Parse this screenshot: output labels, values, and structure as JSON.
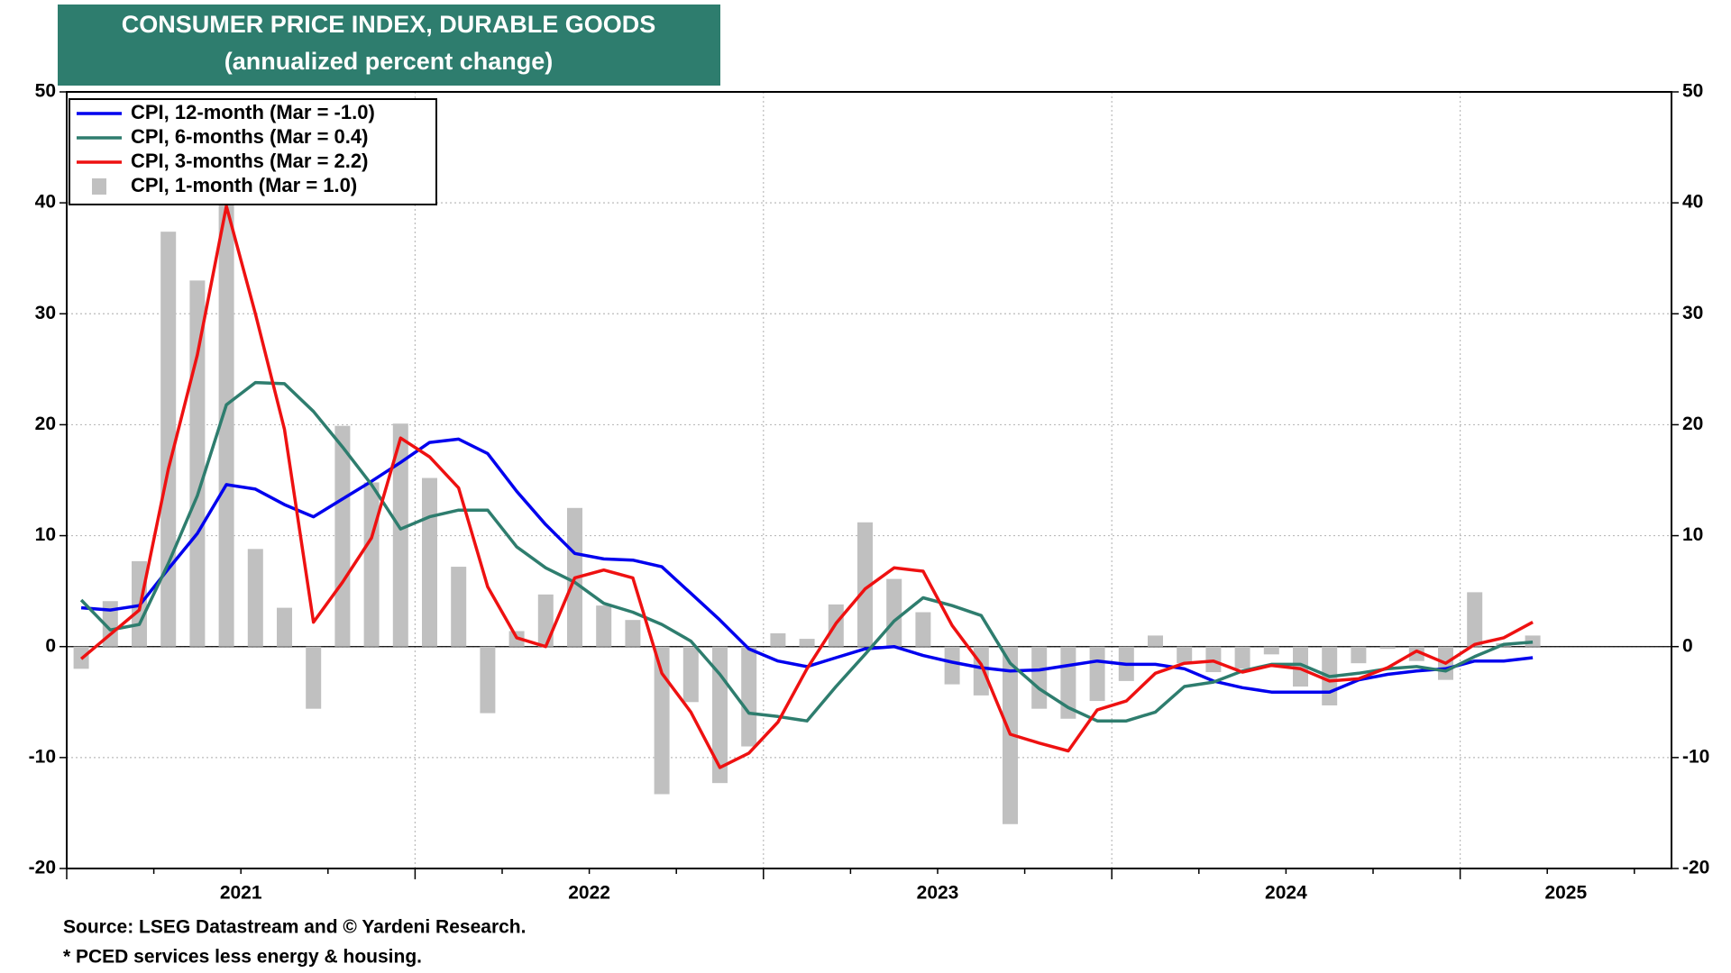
{
  "chart_data": {
    "type": "line",
    "title": "CONSUMER PRICE INDEX, DURABLE GOODS",
    "subtitle": "(annualized percent change)",
    "source": "Source: LSEG Datastream and © Yardeni Research.",
    "note": "* PCED services less energy & housing.",
    "categories": [
      null,
      null,
      null,
      null,
      null,
      null,
      null,
      null,
      null,
      null,
      null,
      null,
      null,
      null,
      null,
      null,
      null,
      null,
      null,
      null,
      null,
      null,
      null,
      null,
      null,
      null,
      null,
      null,
      null,
      null,
      null,
      null,
      null,
      null,
      null,
      null,
      null,
      null,
      null,
      null,
      null,
      null,
      null,
      null,
      null,
      null,
      null,
      null,
      null,
      null,
      null
    ],
    "year_labels": [
      "2021",
      "2022",
      "2023",
      "2024",
      "2025"
    ],
    "ylim": [
      -20,
      50
    ],
    "yticks": [
      -20,
      -10,
      0,
      10,
      20,
      30,
      40,
      50
    ],
    "y2lim": [
      -20,
      50
    ],
    "y2ticks": [
      -20,
      -10,
      0,
      10,
      20,
      30,
      40,
      50
    ],
    "grid": true,
    "legend": "top-left",
    "series": [
      {
        "name": "CPI, 12-month (Mar = -1.0)",
        "type": "line",
        "color": "#0000ee",
        "values": [
          3.5,
          3.3,
          3.7,
          7,
          10.2,
          14.6,
          14.2,
          12.8,
          11.7,
          13.3,
          14.9,
          16.6,
          18.4,
          18.7,
          17.4,
          14,
          11,
          8.4,
          7.9,
          7.8,
          7.2,
          4.8,
          2.4,
          -0.2,
          -1.3,
          -1.8,
          -1,
          -0.2,
          0,
          -0.8,
          -1.4,
          -1.9,
          -2.2,
          -2.1,
          -1.7,
          -1.3,
          -1.6,
          -1.6,
          -2,
          -3.1,
          -3.7,
          -4.1,
          -4.1,
          -4.1,
          -3,
          -2.5,
          -2.2,
          -2,
          -1.3,
          -1.3,
          -1.0
        ]
      },
      {
        "name": "CPI, 6-months (Mar = 0.4)",
        "type": "line",
        "color": "#2e7d6e",
        "values": [
          4.2,
          1.5,
          2,
          7.5,
          13.6,
          21.8,
          23.8,
          23.7,
          21.2,
          18,
          14.6,
          10.6,
          11.7,
          12.3,
          12.3,
          9,
          7.1,
          5.8,
          3.9,
          3.1,
          2,
          0.5,
          -2.5,
          -6,
          -6.3,
          -6.7,
          -3.6,
          -0.7,
          2.3,
          4.4,
          3.7,
          2.8,
          -1.5,
          -3.8,
          -5.5,
          -6.7,
          -6.7,
          -5.9,
          -3.6,
          -3.2,
          -2.2,
          -1.6,
          -1.6,
          -2.7,
          -2.4,
          -2,
          -1.8,
          -2.2,
          -0.9,
          0.2,
          0.4
        ]
      },
      {
        "name": "CPI, 3-months (Mar = 2.2)",
        "type": "line",
        "color": "#ee1111",
        "values": [
          -1.1,
          1.1,
          3.3,
          16,
          26.3,
          39.7,
          30,
          19.6,
          2.2,
          5.8,
          9.8,
          18.8,
          17.1,
          14.3,
          5.4,
          0.8,
          0,
          6.2,
          6.9,
          6.2,
          -2.4,
          -5.9,
          -10.9,
          -9.6,
          -6.8,
          -2,
          2.1,
          5.2,
          7.1,
          6.8,
          1.9,
          -1.6,
          -7.9,
          -8.7,
          -9.4,
          -5.7,
          -4.9,
          -2.4,
          -1.5,
          -1.3,
          -2.3,
          -1.7,
          -2,
          -3.1,
          -2.9,
          -1.9,
          -0.4,
          -1.5,
          0.2,
          0.8,
          2.2
        ]
      },
      {
        "name": "CPI, 1-month (Mar = 1.0)",
        "type": "bar",
        "color": "#c0c0c0",
        "values": [
          -2,
          4.1,
          7.7,
          37.4,
          33,
          40,
          8.8,
          3.5,
          -5.6,
          19.9,
          14.8,
          20.1,
          15.2,
          7.2,
          -6,
          1.4,
          4.7,
          12.5,
          3.7,
          2.4,
          -13.3,
          -5,
          -12.3,
          -9,
          1.2,
          0.7,
          3.8,
          11.2,
          6.1,
          3.1,
          -3.4,
          -4.4,
          -16,
          -5.6,
          -6.5,
          -4.9,
          -3.1,
          1.0,
          -1.5,
          -2.3,
          -2,
          -0.7,
          -3.6,
          -5.3,
          -1.5,
          -0.2,
          -1.3,
          -3,
          4.9,
          0.3,
          1.0
        ]
      }
    ]
  }
}
